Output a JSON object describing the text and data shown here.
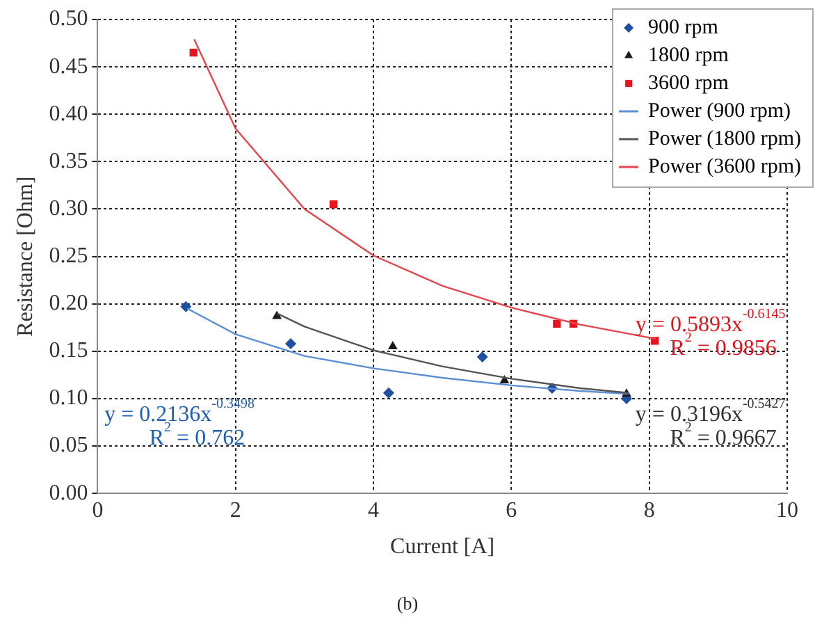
{
  "chart_data": {
    "type": "scatter",
    "xlabel": "Current [A]",
    "ylabel": "Resistance [Ohm]",
    "xlim": [
      0,
      10
    ],
    "xticks": [
      0,
      2,
      4,
      6,
      8,
      10
    ],
    "ylim": [
      0,
      0.5
    ],
    "yticks": [
      {
        "value": 0,
        "label": "0.00"
      },
      {
        "value": 0.05,
        "label": "0.05"
      },
      {
        "value": 0.1,
        "label": "0.10"
      },
      {
        "value": 0.15,
        "label": "0.15"
      },
      {
        "value": 0.2,
        "label": "0.20"
      },
      {
        "value": 0.25,
        "label": "0.25"
      },
      {
        "value": 0.3,
        "label": "0.30"
      },
      {
        "value": 0.35,
        "label": "0.35"
      },
      {
        "value": 0.4,
        "label": "0.40"
      },
      {
        "value": 0.45,
        "label": "0.45"
      },
      {
        "value": 0.5,
        "label": "0.50"
      }
    ],
    "grid": true,
    "legend": "top right",
    "series": [
      {
        "name": "900 rpm",
        "marker": "diamond",
        "color": "#1f4fa0",
        "x": [
          1.28,
          2.8,
          4.22,
          5.58,
          6.59,
          7.67
        ],
        "values": [
          0.197,
          0.158,
          0.106,
          0.144,
          0.111,
          0.1
        ]
      },
      {
        "name": "1800 rpm",
        "marker": "triangle",
        "color": "#1a1a1a",
        "x": [
          2.6,
          4.28,
          5.9,
          7.67
        ],
        "values": [
          0.187,
          0.155,
          0.119,
          0.105
        ]
      },
      {
        "name": "3600 rpm",
        "marker": "square",
        "color": "#e8141c",
        "x": [
          1.39,
          3.42,
          6.66,
          6.9,
          8.08
        ],
        "values": [
          0.465,
          0.305,
          0.179,
          0.179,
          0.161
        ]
      },
      {
        "name": "Power (900 rpm)",
        "type": "line",
        "marker": "none",
        "color": "#5b8fd6",
        "x": [
          1.3,
          2,
          3,
          4,
          5,
          6,
          7,
          7.7
        ],
        "values": [
          0.195,
          0.168,
          0.145,
          0.132,
          0.122,
          0.114,
          0.108,
          0.105
        ]
      },
      {
        "name": "Power (1800 rpm)",
        "type": "line",
        "marker": "none",
        "color": "#555555",
        "x": [
          2.6,
          3,
          4,
          5,
          6,
          7,
          7.7
        ],
        "values": [
          0.19,
          0.176,
          0.151,
          0.134,
          0.121,
          0.111,
          0.106
        ]
      },
      {
        "name": "Power (3600 rpm)",
        "type": "line",
        "marker": "none",
        "color": "#e8444c",
        "x": [
          1.4,
          2,
          3,
          4,
          5,
          6,
          7,
          8.1
        ],
        "values": [
          0.479,
          0.385,
          0.3,
          0.251,
          0.219,
          0.196,
          0.178,
          0.163
        ]
      }
    ],
    "annotations": [
      "y = 0.2136x$^{-0.3498}$",
      "R$^{2}$ = 0.762",
      "y = 0.3196x$^{-0.5427}$",
      "R$^{2}$ = 0.9667",
      "y = 0.5893x$^{-0.6145}$",
      "R$^{2}$ = 0.9856",
      "(b)"
    ]
  }
}
